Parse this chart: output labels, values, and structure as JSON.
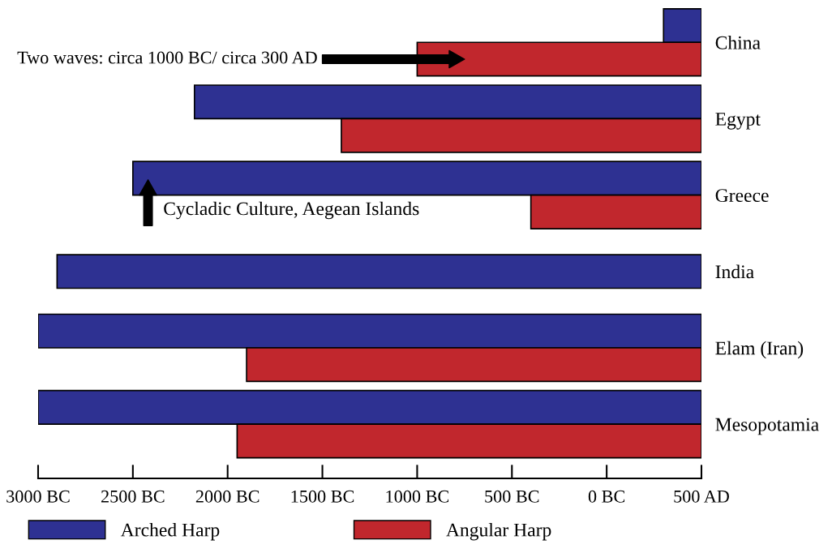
{
  "chart_data": {
    "type": "bar",
    "orientation": "horizontal",
    "categories": [
      "China",
      "Egypt",
      "Greece",
      "India",
      "Elam (Iran)",
      "Mesopotamia"
    ],
    "series": [
      {
        "name": "Arched Harp",
        "color": "#2e3192",
        "base": [
          300,
          -2175,
          -2500,
          -2900,
          -3000,
          -3000
        ],
        "values": [
          200,
          2675,
          3000,
          3400,
          3500,
          3500
        ]
      },
      {
        "name": "Angular Harp",
        "color": "#c1272d",
        "base": [
          -1000,
          -1400,
          -400,
          null,
          -1900,
          -1950
        ],
        "values": [
          1500,
          1900,
          900,
          null,
          2400,
          2450
        ]
      }
    ],
    "xlim": [
      -3000,
      500
    ],
    "xticks": [
      {
        "value": -3000,
        "label": "3000 BC"
      },
      {
        "value": -2500,
        "label": "2500 BC"
      },
      {
        "value": -2000,
        "label": "2000 BC"
      },
      {
        "value": -1500,
        "label": "1500 BC"
      },
      {
        "value": -1000,
        "label": "1000 BC"
      },
      {
        "value": -500,
        "label": "500 BC"
      },
      {
        "value": 0,
        "label": "0 BC"
      },
      {
        "value": 500,
        "label": "500 AD"
      }
    ],
    "annotations": [
      "Two waves: circa 1000 BC/ circa 300 AD",
      "Cycladic Culture, Aegean Islands"
    ],
    "grid": false,
    "legend": "bottom"
  }
}
